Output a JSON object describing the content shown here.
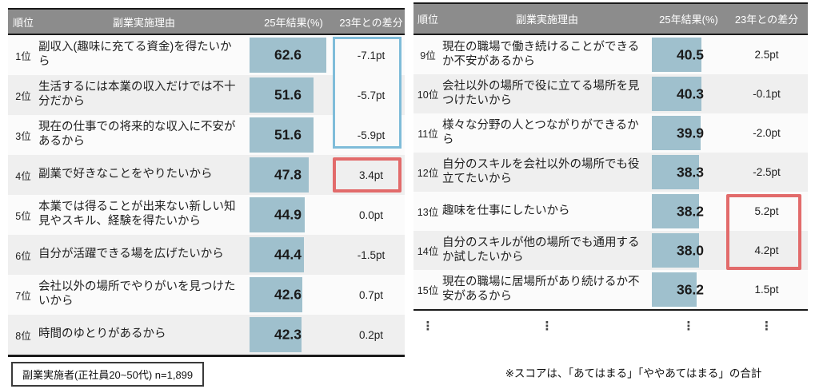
{
  "colors": {
    "bar": "#9fc0cd",
    "header_bg": "#8c8c8c",
    "border_dark": "#1a1a1a",
    "row_odd": "#fbfbfb",
    "row_even": "#efefef",
    "highlight_blue": "#7fbcd9",
    "highlight_red": "#e26b6b"
  },
  "columns": {
    "rank": "順位",
    "reason": "副業実施理由",
    "score": "25年結果(%)",
    "diff": "23年との差分"
  },
  "left_table": {
    "rows": [
      {
        "rank": "1位",
        "reason": "副収入(趣味に充てる資金)を得たいから",
        "score": "62.6",
        "score_value": 62.6,
        "diff": "-7.1pt"
      },
      {
        "rank": "2位",
        "reason": "生活するには本業の収入だけでは不十分だから",
        "score": "51.6",
        "score_value": 51.6,
        "diff": "-5.7pt"
      },
      {
        "rank": "3位",
        "reason": "現在の仕事での将来的な収入に不安があるから",
        "score": "51.6",
        "score_value": 51.6,
        "diff": "-5.9pt"
      },
      {
        "rank": "4位",
        "reason": "副業で好きなことをやりたいから",
        "score": "47.8",
        "score_value": 47.8,
        "diff": "3.4pt"
      },
      {
        "rank": "5位",
        "reason": "本業では得ることが出来ない新しい知見やスキル、経験を得たいから",
        "score": "44.9",
        "score_value": 44.9,
        "diff": "0.0pt"
      },
      {
        "rank": "6位",
        "reason": "自分が活躍できる場を広げたいから",
        "score": "44.4",
        "score_value": 44.4,
        "diff": "-1.5pt"
      },
      {
        "rank": "7位",
        "reason": "会社以外の場所でやりがいを見つけたいから",
        "score": "42.6",
        "score_value": 42.6,
        "diff": "0.7pt"
      },
      {
        "rank": "8位",
        "reason": "時間のゆとりがあるから",
        "score": "42.3",
        "score_value": 42.3,
        "diff": "0.2pt"
      }
    ]
  },
  "right_table": {
    "rows": [
      {
        "rank": "9位",
        "reason": "現在の職場で働き続けることができるか不安があるから",
        "score": "40.5",
        "score_value": 40.5,
        "diff": "2.5pt"
      },
      {
        "rank": "10位",
        "reason": "会社以外の場所で役に立てる場所を見つけたいから",
        "score": "40.3",
        "score_value": 40.3,
        "diff": "-0.1pt"
      },
      {
        "rank": "11位",
        "reason": "様々な分野の人とつながりができるから",
        "score": "39.9",
        "score_value": 39.9,
        "diff": "-2.0pt"
      },
      {
        "rank": "12位",
        "reason": "自分のスキルを会社以外の場所でも役立てたいから",
        "score": "38.3",
        "score_value": 38.3,
        "diff": "-2.5pt"
      },
      {
        "rank": "13位",
        "reason": "趣味を仕事にしたいから",
        "score": "38.2",
        "score_value": 38.2,
        "diff": "5.2pt"
      },
      {
        "rank": "14位",
        "reason": "自分のスキルが他の場所でも通用するか試したいから",
        "score": "38.0",
        "score_value": 38.0,
        "diff": "4.2pt"
      },
      {
        "rank": "15位",
        "reason": "現在の職場に居場所があり続けるか不安があるから",
        "score": "36.2",
        "score_value": 36.2,
        "diff": "1.5pt"
      }
    ],
    "continuation_mark": "⋮"
  },
  "footnotes": {
    "sample": "副業実施者(正社員20~50代) n=1,899",
    "score_note": "※スコアは、「あてはまる」「ややあてはまる」の合計"
  },
  "chart_data": {
    "type": "table",
    "columns": [
      "順位",
      "副業実施理由",
      "25年結果(%)",
      "23年との差分"
    ],
    "rows": [
      [
        "1位",
        "副収入(趣味に充てる資金)を得たいから",
        62.6,
        "-7.1pt"
      ],
      [
        "2位",
        "生活するには本業の収入だけでは不十分だから",
        51.6,
        "-5.7pt"
      ],
      [
        "3位",
        "現在の仕事での将来的な収入に不安があるから",
        51.6,
        "-5.9pt"
      ],
      [
        "4位",
        "副業で好きなことをやりたいから",
        47.8,
        "3.4pt"
      ],
      [
        "5位",
        "本業では得ることが出来ない新しい知見やスキル、経験を得たいから",
        44.9,
        "0.0pt"
      ],
      [
        "6位",
        "自分が活躍できる場を広げたいから",
        44.4,
        "-1.5pt"
      ],
      [
        "7位",
        "会社以外の場所でやりがいを見つけたいから",
        42.6,
        "0.7pt"
      ],
      [
        "8位",
        "時間のゆとりがあるから",
        42.3,
        "0.2pt"
      ],
      [
        "9位",
        "現在の職場で働き続けることができるか不安があるから",
        40.5,
        "2.5pt"
      ],
      [
        "10位",
        "会社以外の場所で役に立てる場所を見つけたいから",
        40.3,
        "-0.1pt"
      ],
      [
        "11位",
        "様々な分野の人とつながりができるから",
        39.9,
        "-2.0pt"
      ],
      [
        "12位",
        "自分のスキルを会社以外の場所でも役立てたいから",
        38.3,
        "-2.5pt"
      ],
      [
        "13位",
        "趣味を仕事にしたいから",
        38.2,
        "5.2pt"
      ],
      [
        "14位",
        "自分のスキルが他の場所でも通用するか試したいから",
        38.0,
        "4.2pt"
      ],
      [
        "15位",
        "現在の職場に居場所があり続けるか不安があるから",
        36.2,
        "1.5pt"
      ]
    ],
    "annotations": {
      "blue_box_rows": [
        "1位",
        "2位",
        "3位"
      ],
      "red_box_rows": [
        "4位",
        "13位",
        "14位"
      ],
      "sample_note": "副業実施者(正社員20~50代) n=1,899",
      "score_note": "※スコアは、「あてはまる」「ややあてはまる」の合計"
    }
  }
}
